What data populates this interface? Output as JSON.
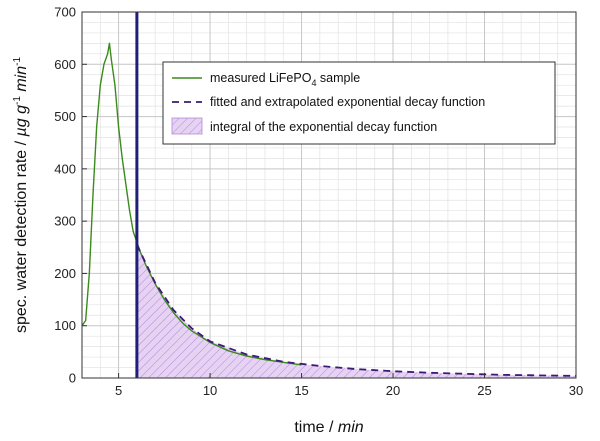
{
  "chart_data": {
    "type": "line",
    "xlabel": "time",
    "xlabel_unit": "min",
    "ylabel": "spec. water detection rate",
    "ylabel_unit_mu": "µ",
    "ylabel_unit_g": "g g",
    "ylabel_unit_g_exp": "-1",
    "ylabel_unit_min": "min",
    "ylabel_unit_min_exp": "-1",
    "xlim": [
      3,
      30
    ],
    "ylim": [
      0,
      700
    ],
    "xticks": [
      5,
      10,
      15,
      20,
      25,
      30
    ],
    "yticks": [
      0,
      100,
      200,
      300,
      400,
      500,
      600,
      700
    ],
    "grid": true,
    "legend_position": "top-right",
    "cutoff_line_x": 6,
    "series": [
      {
        "name_main": "measured LiFePO",
        "name_sub": "4",
        "name_rest": " sample",
        "style": "solid",
        "color": "#3a8a1c",
        "x": [
          3.0,
          3.2,
          3.4,
          3.6,
          3.8,
          4.0,
          4.2,
          4.4,
          4.5,
          4.6,
          4.8,
          5.0,
          5.2,
          5.4,
          5.6,
          5.8,
          6.0,
          6.2,
          6.5,
          7.0,
          7.5,
          8.0,
          8.5,
          9.0,
          10.0,
          11.0,
          12.0,
          13.0,
          14.0,
          15.0
        ],
        "y": [
          100,
          110,
          200,
          350,
          480,
          560,
          600,
          620,
          640,
          610,
          560,
          480,
          420,
          370,
          320,
          280,
          260,
          240,
          215,
          180,
          150,
          125,
          105,
          90,
          68,
          52,
          42,
          35,
          30,
          25
        ]
      },
      {
        "name": "fitted and extrapolated exponential decay function",
        "style": "dashed",
        "color": "#3d1a78",
        "x": [
          6,
          7,
          8,
          9,
          10,
          12,
          14,
          16,
          18,
          20,
          22,
          24,
          26,
          28,
          30
        ],
        "y": [
          255,
          182,
          130,
          95,
          70,
          45,
          31,
          23,
          17,
          13,
          10,
          8,
          6,
          5,
          4
        ]
      },
      {
        "name": "integral of the exponential decay function",
        "style": "hatched-area",
        "color": "#c9a6e6"
      }
    ]
  }
}
